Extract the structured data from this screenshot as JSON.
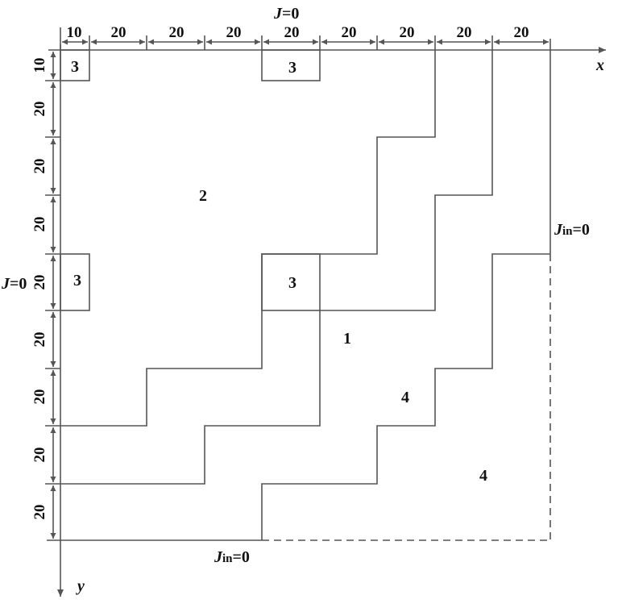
{
  "boundary": {
    "top": {
      "var": "J",
      "eq": "=0"
    },
    "left": {
      "var": "J",
      "eq": "=0"
    },
    "right": {
      "var": "J",
      "sub": "in",
      "eq": "=0"
    },
    "bottom": {
      "var": "J",
      "sub": "in",
      "eq": "=0"
    }
  },
  "axes": {
    "x": "x",
    "y": "y"
  },
  "dimensions": {
    "top": [
      "10",
      "20",
      "20",
      "20",
      "20",
      "20",
      "20",
      "20",
      "20"
    ],
    "left": [
      "10",
      "20",
      "20",
      "20",
      "20",
      "20",
      "20",
      "20",
      "20"
    ]
  },
  "regions": {
    "r3_top_left": "3",
    "r3_top_mid": "3",
    "r3_left": "3",
    "r3_center": "3",
    "r2": "2",
    "r1": "1",
    "r4_upper": "4",
    "r4_lower": "4"
  },
  "colors": {
    "line": "#555555",
    "text": "#111111"
  }
}
